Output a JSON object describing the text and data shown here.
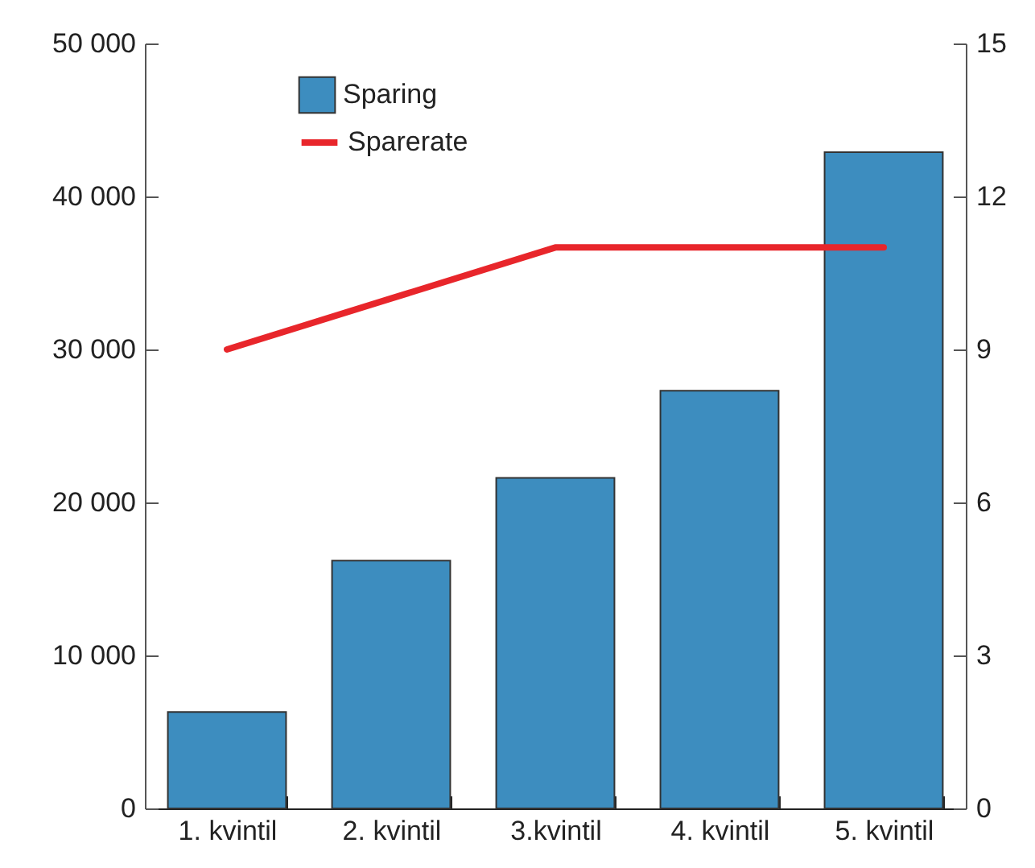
{
  "chart_data": {
    "type": "bar",
    "categories": [
      "1. kvintil",
      "2. kvintil",
      "3.kvintil",
      "4. kvintil",
      "5. kvintil"
    ],
    "series": [
      {
        "name": "Sparing",
        "color": "#3d8dbf",
        "values": [
          6300,
          16200,
          21600,
          27300,
          42900
        ]
      },
      {
        "name": "Sparerate",
        "type": "line",
        "axis": "y2",
        "color": "#e8262b",
        "values": [
          9,
          10,
          11,
          11,
          11
        ]
      }
    ],
    "ylim": [
      0,
      50000
    ],
    "yticks": [
      0,
      {
        "value": 10000,
        "label": "10 000"
      },
      {
        "value": 20000,
        "label": "20 000"
      },
      {
        "value": 30000,
        "label": "30 000"
      },
      {
        "value": 40000,
        "label": "40 000"
      },
      {
        "value": 50000,
        "label": "50 000"
      }
    ],
    "y2lim": [
      0,
      15
    ],
    "y2ticks": [
      0,
      3,
      6,
      9,
      12,
      15
    ],
    "legend": "top left"
  }
}
